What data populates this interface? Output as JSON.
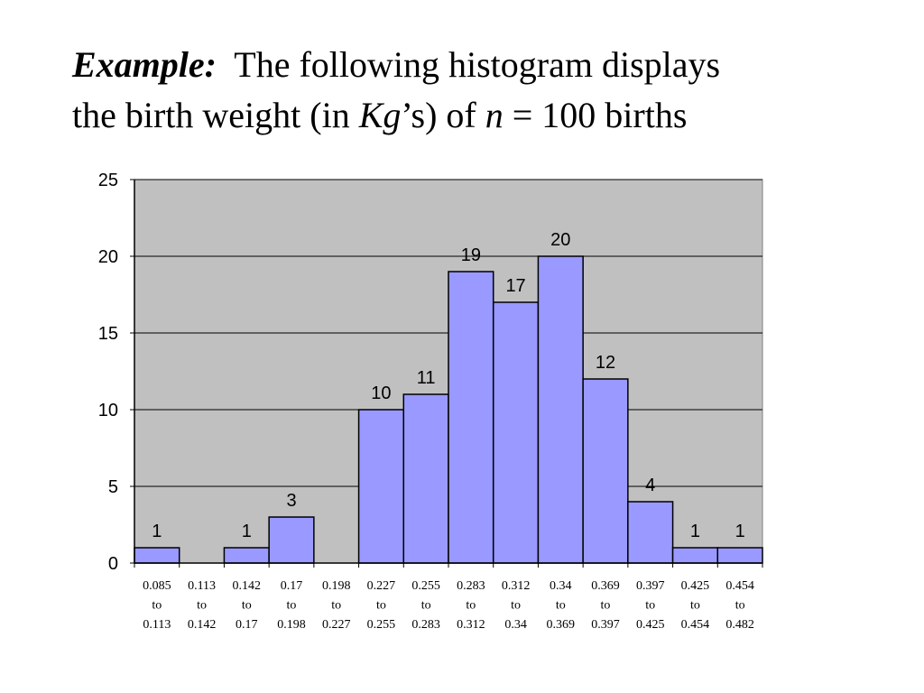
{
  "slide": {
    "title_emph": "Example:",
    "title_part1": "The following histogram displays",
    "title_part2": "the birth weight (in ",
    "title_kg": "Kg",
    "title_part3": "’s) of ",
    "title_n": "n",
    "title_part4": " = 100 births"
  },
  "colors": {
    "plot_background": "#c0c0c0",
    "bar_fill": "#9999ff",
    "bar_stroke": "#000000"
  },
  "chart_data": {
    "type": "bar",
    "title": "",
    "xlabel": "",
    "ylabel": "",
    "ylim": [
      0,
      25
    ],
    "yticks": [
      0,
      5,
      10,
      15,
      20,
      25
    ],
    "grid": true,
    "legend": "none",
    "categories": [
      [
        "0.085",
        "to",
        "0.113"
      ],
      [
        "0.113",
        "to",
        "0.142"
      ],
      [
        "0.142",
        "to",
        "0.17"
      ],
      [
        "0.17",
        "to",
        "0.198"
      ],
      [
        "0.198",
        "to",
        "0.227"
      ],
      [
        "0.227",
        "to",
        "0.255"
      ],
      [
        "0.255",
        "to",
        "0.283"
      ],
      [
        "0.283",
        "to",
        "0.312"
      ],
      [
        "0.312",
        "to",
        "0.34"
      ],
      [
        "0.34",
        "to",
        "0.369"
      ],
      [
        "0.369",
        "to",
        "0.397"
      ],
      [
        "0.397",
        "to",
        "0.425"
      ],
      [
        "0.425",
        "to",
        "0.454"
      ],
      [
        "0.454",
        "to",
        "0.482"
      ]
    ],
    "values": [
      1,
      0,
      1,
      3,
      0,
      10,
      11,
      19,
      17,
      20,
      12,
      4,
      1,
      1
    ]
  }
}
